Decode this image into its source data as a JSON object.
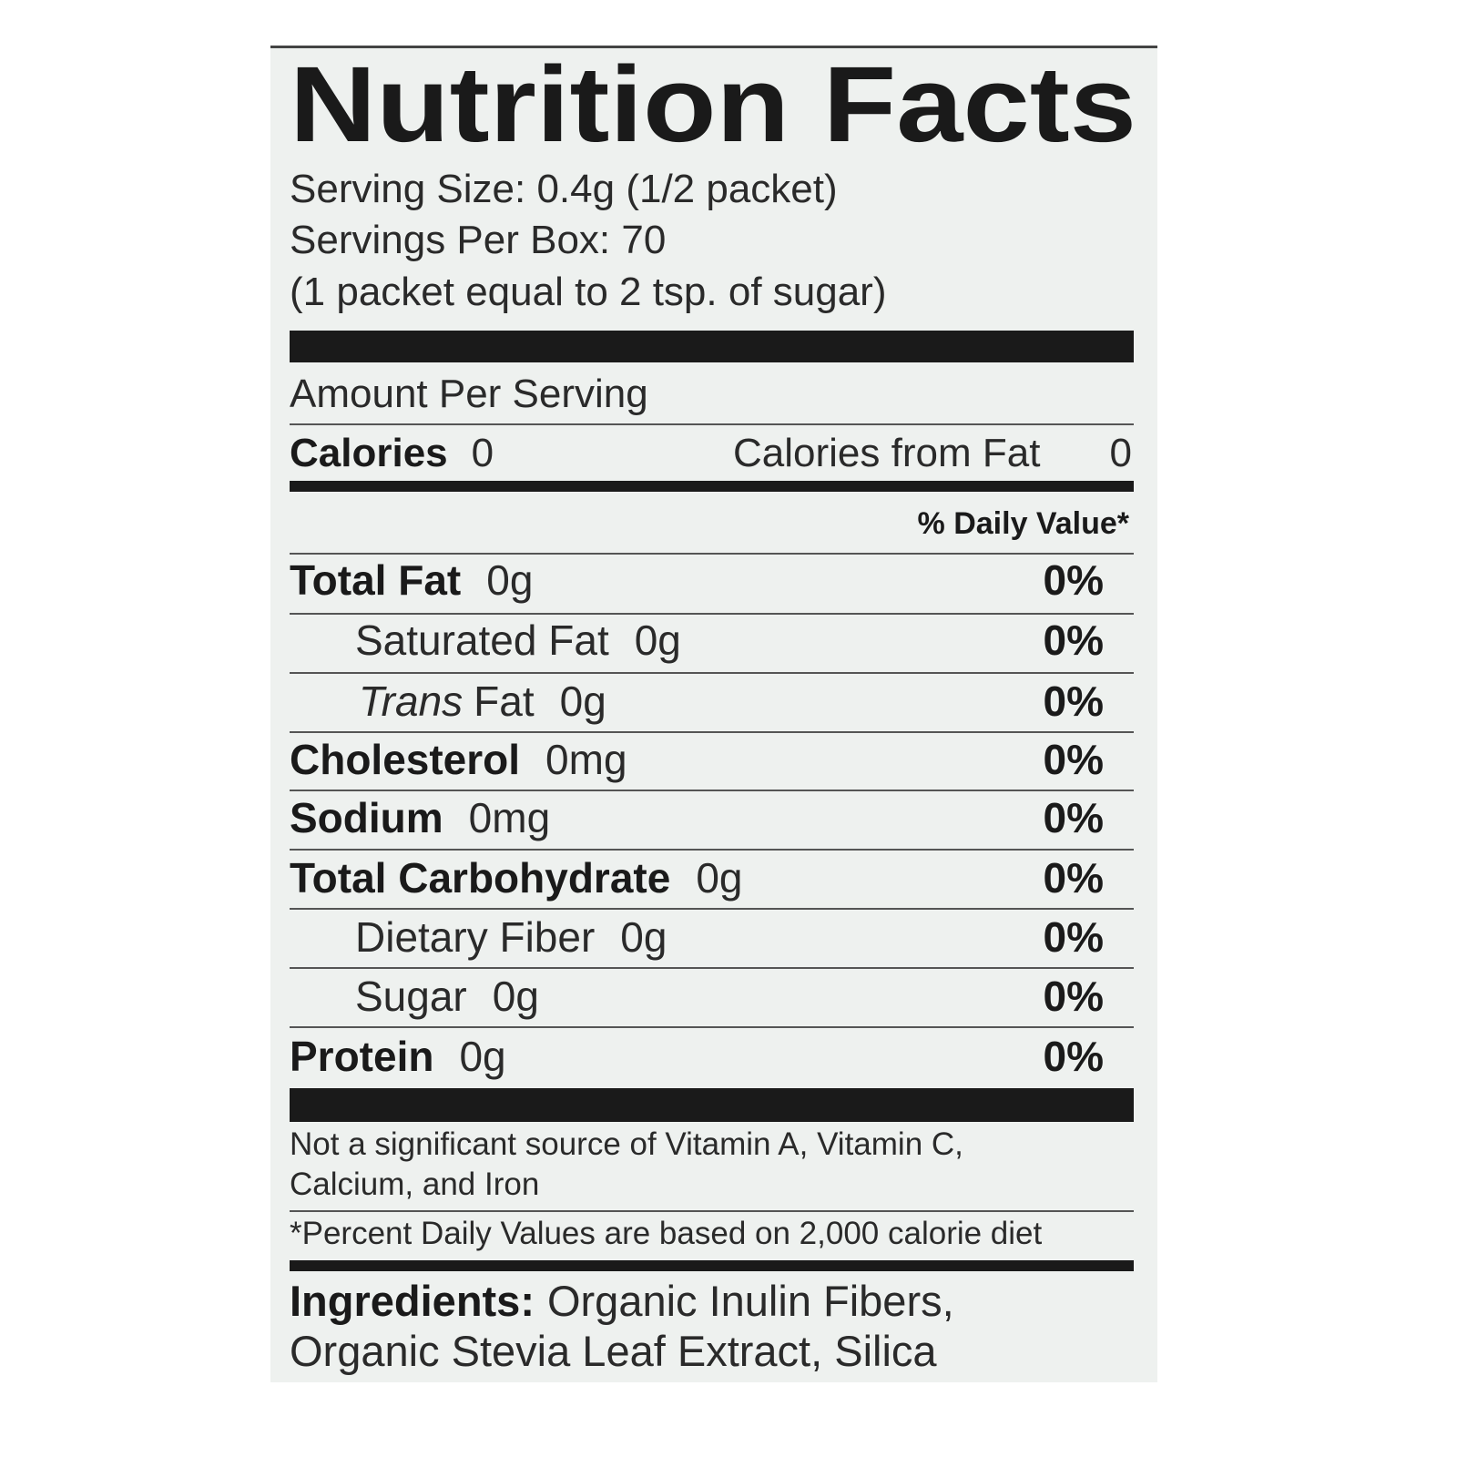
{
  "title": "Nutrition Facts",
  "serving": [
    "Serving Size: 0.4g (1/2 packet)",
    "Servings Per Box: 70",
    "(1 packet equal to 2 tsp. of sugar)"
  ],
  "amount_per_serving": "Amount Per Serving",
  "calories": {
    "label": "Calories",
    "value": "0",
    "from_fat_label": "Calories from Fat",
    "from_fat_value": "0"
  },
  "daily_value_header": "% Daily Value*",
  "nutrients": [
    {
      "name": "Total Fat",
      "amount": "0g",
      "dv": "0%"
    },
    {
      "name": "Saturated Fat",
      "amount": "0g",
      "dv": "0%"
    },
    {
      "name_italic": "Trans",
      "name": "Fat",
      "amount": "0g",
      "dv": "0%"
    },
    {
      "name": "Cholesterol",
      "amount": "0mg",
      "dv": "0%"
    },
    {
      "name": "Sodium",
      "amount": "0mg",
      "dv": "0%"
    },
    {
      "name": "Total Carbohydrate",
      "amount": "0g",
      "dv": "0%"
    },
    {
      "name": "Dietary Fiber",
      "amount": "0g",
      "dv": "0%"
    },
    {
      "name": "Sugar",
      "amount": "0g",
      "dv": "0%"
    },
    {
      "name": "Protein",
      "amount": "0g",
      "dv": "0%"
    }
  ],
  "footnote": [
    "Not a significant source of Vitamin A, Vitamin C,",
    "Calcium, and Iron"
  ],
  "dv_note": "*Percent Daily Values are based on 2,000 calorie diet",
  "ingredients": {
    "label": "Ingredients:",
    "lines": [
      "Organic Inulin Fibers,",
      "Organic Stevia Leaf Extract, Silica"
    ]
  }
}
